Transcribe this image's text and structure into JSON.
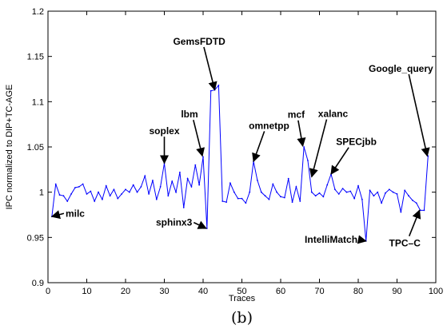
{
  "chart_data": {
    "type": "line",
    "xlabel": "Traces",
    "ylabel": "IPC normalized to DIP+TC-AGE",
    "xlim": [
      0,
      100
    ],
    "ylim": [
      0.9,
      1.2
    ],
    "xticks": [
      0,
      10,
      20,
      30,
      40,
      50,
      60,
      70,
      80,
      90,
      100
    ],
    "yticks": [
      0.9,
      0.95,
      1,
      1.05,
      1.1,
      1.15,
      1.2
    ],
    "ytick_labels": [
      "0.9",
      "0.95",
      "1",
      "1.05",
      "1.1",
      "1.15",
      "1.2"
    ],
    "grid": false,
    "line_color": "#0000ff",
    "series": [
      {
        "x": [
          1,
          2,
          3,
          4,
          5,
          6,
          7,
          8,
          9,
          10,
          11,
          12,
          13,
          14,
          15,
          16,
          17,
          18,
          19,
          20,
          21,
          22,
          23,
          24,
          25,
          26,
          27,
          28,
          29,
          30,
          31,
          32,
          33,
          34,
          35,
          36,
          37,
          38,
          39,
          40,
          41,
          42,
          43,
          44,
          45,
          46,
          47,
          48,
          49,
          50,
          51,
          52,
          53,
          54,
          55,
          56,
          57,
          58,
          59,
          60,
          61,
          62,
          63,
          64,
          65,
          66,
          67,
          68,
          69,
          70,
          71,
          72,
          73,
          74,
          75,
          76,
          77,
          78,
          79,
          80,
          81,
          82,
          83,
          84,
          85,
          86,
          87,
          88,
          89,
          90,
          91,
          92,
          93,
          94,
          95,
          96,
          97,
          98
        ],
        "y": [
          0.973,
          1.009,
          0.997,
          0.996,
          0.99,
          0.998,
          1.005,
          1.006,
          1.009,
          0.998,
          1.001,
          0.99,
          1.0,
          0.992,
          1.007,
          0.996,
          1.003,
          0.993,
          0.998,
          1.003,
          1.0,
          1.008,
          1.0,
          1.006,
          1.018,
          0.998,
          1.013,
          0.992,
          1.006,
          1.032,
          0.996,
          1.012,
          1.0,
          1.022,
          0.983,
          1.015,
          1.006,
          1.03,
          1.008,
          1.039,
          0.96,
          1.112,
          1.113,
          1.118,
          0.99,
          0.989,
          1.01,
          1.0,
          0.993,
          0.993,
          0.988,
          1.0,
          1.034,
          1.013,
          1.0,
          0.996,
          0.992,
          1.009,
          1.0,
          0.995,
          0.994,
          1.015,
          0.989,
          1.006,
          0.99,
          1.05,
          1.035,
          1.0,
          0.996,
          0.999,
          0.995,
          1.008,
          1.02,
          1.003,
          0.998,
          1.004,
          1.0,
          1.001,
          0.993,
          1.007,
          0.992,
          0.946,
          1.002,
          0.996,
          1.0,
          0.988,
          0.999,
          1.003,
          1.0,
          0.998,
          0.978,
          1.002,
          0.996,
          0.991,
          0.988,
          0.98,
          0.98,
          1.04
        ]
      }
    ],
    "annotations": [
      {
        "label": "milc",
        "target": [
          1,
          0.973
        ],
        "text_at": [
          7,
          0.973
        ]
      },
      {
        "label": "soplex",
        "target": [
          30,
          1.032
        ],
        "text_at": [
          30,
          1.064
        ]
      },
      {
        "label": "lbm",
        "target": [
          39.8,
          1.04
        ],
        "text_at": [
          36.5,
          1.0825
        ]
      },
      {
        "label": "GemsFDTD",
        "target": [
          43,
          1.113
        ],
        "text_at": [
          39,
          1.163
        ]
      },
      {
        "label": "omnetpp",
        "target": [
          53,
          1.034
        ],
        "text_at": [
          57,
          1.07
        ]
      },
      {
        "label": "mcf",
        "target": [
          65.7,
          1.051
        ],
        "text_at": [
          64,
          1.082
        ]
      },
      {
        "label": "xalanc",
        "target": [
          68,
          1.017
        ],
        "text_at": [
          73.5,
          1.083
        ]
      },
      {
        "label": "SPECjbb",
        "target": [
          73,
          1.02
        ],
        "text_at": [
          79.5,
          1.052
        ]
      },
      {
        "label": "Google_query",
        "target": [
          97.8,
          1.04
        ],
        "text_at": [
          91,
          1.133
        ]
      },
      {
        "label": "sphinx3",
        "target": [
          40.8,
          0.96
        ],
        "text_at": [
          32.5,
          0.963
        ]
      },
      {
        "label": "IntelliMatch",
        "target": [
          82,
          0.946
        ],
        "text_at": [
          73,
          0.944
        ]
      },
      {
        "label": "TPC–C",
        "target": [
          95.8,
          0.98
        ],
        "text_at": [
          92,
          0.94
        ]
      }
    ]
  },
  "caption": "(b)"
}
